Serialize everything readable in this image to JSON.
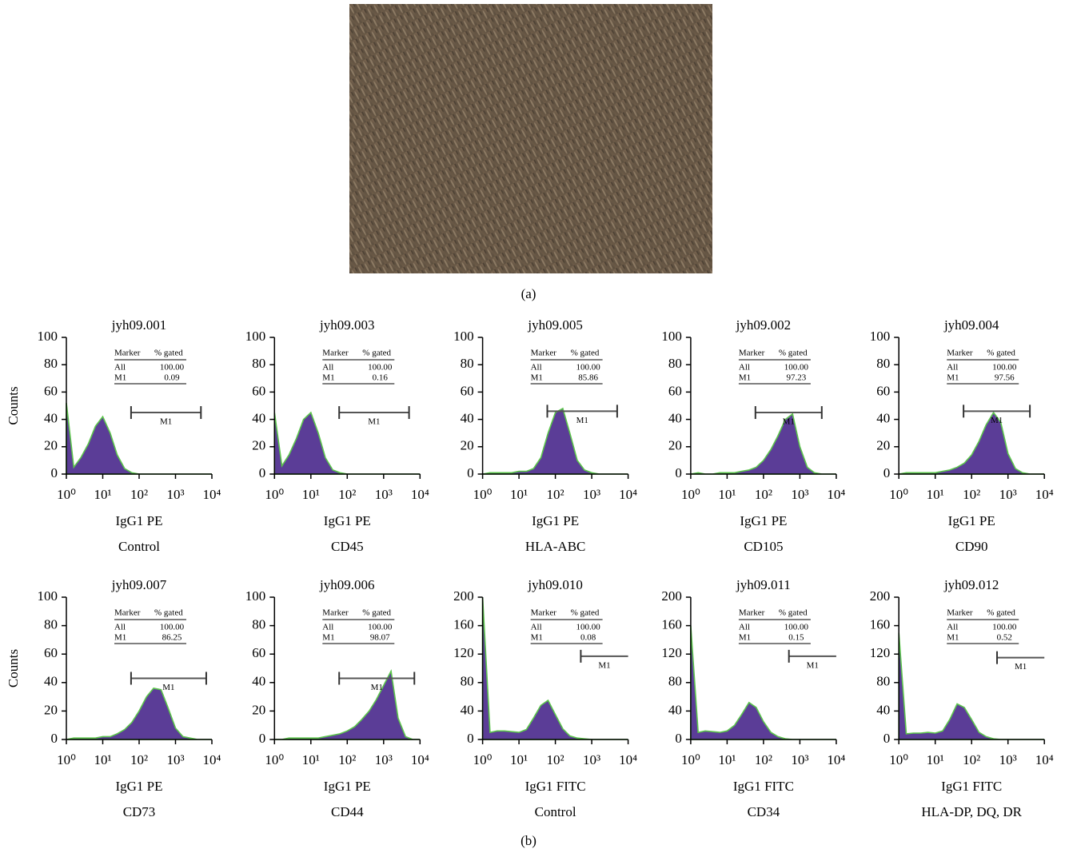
{
  "figure": {
    "panel_a_label": "(a)",
    "panel_b_label": "(b)"
  },
  "chart_data": [
    {
      "type": "histogram",
      "title": "jyh09.001",
      "ylabel": "Counts",
      "xlabel": "IgG1 PE",
      "caption": "Control",
      "log_x": true,
      "xlim": [
        1,
        10000
      ],
      "xticks": [
        {
          "value": 1,
          "label": "10⁰"
        },
        {
          "value": 10,
          "label": "10¹"
        },
        {
          "value": 100,
          "label": "10²"
        },
        {
          "value": 1000,
          "label": "10³"
        },
        {
          "value": 10000,
          "label": "10⁴"
        }
      ],
      "ylim": [
        0,
        100
      ],
      "yticks": [
        0,
        20,
        40,
        60,
        80,
        100
      ],
      "fill": "#5b3d97",
      "edge": "#5cc44c",
      "x": [
        1,
        1.6,
        2.5,
        4,
        6.3,
        10,
        16,
        25,
        40,
        63,
        100,
        160,
        250,
        400,
        630,
        1000,
        1600,
        2500,
        4000,
        6300,
        10000
      ],
      "values": [
        52,
        5,
        12,
        22,
        35,
        42,
        30,
        14,
        4,
        1,
        0,
        0,
        0,
        0,
        0,
        0,
        0,
        0,
        0,
        0,
        0
      ],
      "gate": {
        "label": "M1",
        "range": [
          60,
          5000
        ],
        "level": 45
      },
      "table": {
        "header": [
          "Marker",
          "% gated"
        ],
        "rows": [
          [
            "All",
            "100.00"
          ],
          [
            "M1",
            "0.09"
          ]
        ]
      }
    },
    {
      "type": "histogram",
      "title": "jyh09.003",
      "xlabel": "IgG1 PE",
      "caption": "CD45",
      "log_x": true,
      "xlim": [
        1,
        10000
      ],
      "xticks": [
        {
          "value": 1,
          "label": "10⁰"
        },
        {
          "value": 10,
          "label": "10¹"
        },
        {
          "value": 100,
          "label": "10²"
        },
        {
          "value": 1000,
          "label": "10³"
        },
        {
          "value": 10000,
          "label": "10⁴"
        }
      ],
      "ylim": [
        0,
        100
      ],
      "yticks": [
        0,
        20,
        40,
        60,
        80,
        100
      ],
      "fill": "#5b3d97",
      "edge": "#5cc44c",
      "x": [
        1,
        1.6,
        2.5,
        4,
        6.3,
        10,
        16,
        25,
        40,
        63,
        100,
        160,
        250,
        400,
        630,
        1000,
        1600,
        2500,
        4000,
        6300,
        10000
      ],
      "values": [
        45,
        6,
        14,
        26,
        40,
        45,
        30,
        12,
        3,
        1,
        0,
        0,
        0,
        0,
        0,
        0,
        0,
        0,
        0,
        0,
        0
      ],
      "gate": {
        "label": "M1",
        "range": [
          60,
          5000
        ],
        "level": 45
      },
      "table": {
        "header": [
          "Marker",
          "% gated"
        ],
        "rows": [
          [
            "All",
            "100.00"
          ],
          [
            "M1",
            "0.16"
          ]
        ]
      }
    },
    {
      "type": "histogram",
      "title": "jyh09.005",
      "xlabel": "IgG1 PE",
      "caption": "HLA-ABC",
      "log_x": true,
      "xlim": [
        1,
        10000
      ],
      "xticks": [
        {
          "value": 1,
          "label": "10⁰"
        },
        {
          "value": 10,
          "label": "10¹"
        },
        {
          "value": 100,
          "label": "10²"
        },
        {
          "value": 1000,
          "label": "10³"
        },
        {
          "value": 10000,
          "label": "10⁴"
        }
      ],
      "ylim": [
        0,
        100
      ],
      "yticks": [
        0,
        20,
        40,
        60,
        80,
        100
      ],
      "fill": "#5b3d97",
      "edge": "#5cc44c",
      "x": [
        1,
        1.6,
        2.5,
        4,
        6.3,
        10,
        16,
        25,
        40,
        63,
        100,
        160,
        250,
        400,
        630,
        1000,
        1600,
        2500,
        4000,
        6300,
        10000
      ],
      "values": [
        0,
        1,
        1,
        1,
        1,
        2,
        2,
        4,
        12,
        30,
        45,
        48,
        30,
        10,
        3,
        1,
        0,
        0,
        0,
        0,
        0
      ],
      "gate": {
        "label": "M1",
        "range": [
          60,
          5000
        ],
        "level": 46
      },
      "table": {
        "header": [
          "Marker",
          "% gated"
        ],
        "rows": [
          [
            "All",
            "100.00"
          ],
          [
            "M1",
            "85.86"
          ]
        ]
      }
    },
    {
      "type": "histogram",
      "title": "jyh09.002",
      "xlabel": "IgG1 PE",
      "caption": "CD105",
      "log_x": true,
      "xlim": [
        1,
        10000
      ],
      "xticks": [
        {
          "value": 1,
          "label": "10⁰"
        },
        {
          "value": 10,
          "label": "10¹"
        },
        {
          "value": 100,
          "label": "10²"
        },
        {
          "value": 1000,
          "label": "10³"
        },
        {
          "value": 10000,
          "label": "10⁴"
        }
      ],
      "ylim": [
        0,
        100
      ],
      "yticks": [
        0,
        20,
        40,
        60,
        80,
        100
      ],
      "fill": "#5b3d97",
      "edge": "#5cc44c",
      "x": [
        1,
        1.6,
        2.5,
        4,
        6.3,
        10,
        16,
        25,
        40,
        63,
        100,
        160,
        250,
        400,
        630,
        1000,
        1600,
        2500,
        4000,
        6300,
        10000
      ],
      "values": [
        0,
        1,
        0,
        0,
        1,
        1,
        1,
        2,
        3,
        5,
        10,
        18,
        28,
        40,
        44,
        20,
        5,
        1,
        0,
        0,
        0
      ],
      "gate": {
        "label": "M1",
        "range": [
          60,
          4000
        ],
        "level": 45
      },
      "table": {
        "header": [
          "Marker",
          "% gated"
        ],
        "rows": [
          [
            "All",
            "100.00"
          ],
          [
            "M1",
            "97.23"
          ]
        ]
      }
    },
    {
      "type": "histogram",
      "title": "jyh09.004",
      "xlabel": "IgG1 PE",
      "caption": "CD90",
      "log_x": true,
      "xlim": [
        1,
        10000
      ],
      "xticks": [
        {
          "value": 1,
          "label": "10⁰"
        },
        {
          "value": 10,
          "label": "10¹"
        },
        {
          "value": 100,
          "label": "10²"
        },
        {
          "value": 1000,
          "label": "10³"
        },
        {
          "value": 10000,
          "label": "10⁴"
        }
      ],
      "ylim": [
        0,
        100
      ],
      "yticks": [
        0,
        20,
        40,
        60,
        80,
        100
      ],
      "fill": "#5b3d97",
      "edge": "#5cc44c",
      "x": [
        1,
        1.6,
        2.5,
        4,
        6.3,
        10,
        16,
        25,
        40,
        63,
        100,
        160,
        250,
        400,
        630,
        1000,
        1600,
        2500,
        4000,
        6300,
        10000
      ],
      "values": [
        0,
        1,
        1,
        1,
        1,
        1,
        2,
        3,
        5,
        8,
        14,
        24,
        36,
        45,
        38,
        15,
        4,
        1,
        0,
        0,
        0
      ],
      "gate": {
        "label": "M1",
        "range": [
          60,
          4000
        ],
        "level": 46
      },
      "table": {
        "header": [
          "Marker",
          "% gated"
        ],
        "rows": [
          [
            "All",
            "100.00"
          ],
          [
            "M1",
            "97.56"
          ]
        ]
      }
    },
    {
      "type": "histogram",
      "title": "jyh09.007",
      "ylabel": "Counts",
      "xlabel": "IgG1 PE",
      "caption": "CD73",
      "log_x": true,
      "xlim": [
        1,
        10000
      ],
      "xticks": [
        {
          "value": 1,
          "label": "10⁰"
        },
        {
          "value": 10,
          "label": "10¹"
        },
        {
          "value": 100,
          "label": "10²"
        },
        {
          "value": 1000,
          "label": "10³"
        },
        {
          "value": 10000,
          "label": "10⁴"
        }
      ],
      "ylim": [
        0,
        100
      ],
      "yticks": [
        0,
        20,
        40,
        60,
        80,
        100
      ],
      "fill": "#5b3d97",
      "edge": "#5cc44c",
      "x": [
        1,
        1.6,
        2.5,
        4,
        6.3,
        10,
        16,
        25,
        40,
        63,
        100,
        160,
        250,
        400,
        630,
        1000,
        1600,
        2500,
        4000,
        6300,
        10000
      ],
      "values": [
        0,
        1,
        1,
        1,
        1,
        2,
        2,
        4,
        7,
        12,
        20,
        30,
        36,
        35,
        22,
        8,
        2,
        1,
        0,
        0,
        0
      ],
      "gate": {
        "label": "M1",
        "range": [
          60,
          7000
        ],
        "level": 43
      },
      "table": {
        "header": [
          "Marker",
          "% gated"
        ],
        "rows": [
          [
            "All",
            "100.00"
          ],
          [
            "M1",
            "86.25"
          ]
        ]
      }
    },
    {
      "type": "histogram",
      "title": "jyh09.006",
      "xlabel": "IgG1 PE",
      "caption": "CD44",
      "log_x": true,
      "xlim": [
        1,
        10000
      ],
      "xticks": [
        {
          "value": 1,
          "label": "10⁰"
        },
        {
          "value": 10,
          "label": "10¹"
        },
        {
          "value": 100,
          "label": "10²"
        },
        {
          "value": 1000,
          "label": "10³"
        },
        {
          "value": 10000,
          "label": "10⁴"
        }
      ],
      "ylim": [
        0,
        100
      ],
      "yticks": [
        0,
        20,
        40,
        60,
        80,
        100
      ],
      "fill": "#5b3d97",
      "edge": "#5cc44c",
      "x": [
        1,
        1.6,
        2.5,
        4,
        6.3,
        10,
        16,
        25,
        40,
        63,
        100,
        160,
        250,
        400,
        630,
        1000,
        1600,
        2500,
        4000,
        6300,
        10000
      ],
      "values": [
        0,
        0,
        1,
        1,
        1,
        1,
        1,
        2,
        3,
        4,
        6,
        9,
        14,
        20,
        28,
        38,
        48,
        15,
        2,
        0,
        0
      ],
      "gate": {
        "label": "M1",
        "range": [
          60,
          7000
        ],
        "level": 43
      },
      "table": {
        "header": [
          "Marker",
          "% gated"
        ],
        "rows": [
          [
            "All",
            "100.00"
          ],
          [
            "M1",
            "98.07"
          ]
        ]
      }
    },
    {
      "type": "histogram",
      "title": "jyh09.010",
      "xlabel": "IgG1 FITC",
      "caption": "Control",
      "log_x": true,
      "xlim": [
        1,
        10000
      ],
      "xticks": [
        {
          "value": 1,
          "label": "10⁰"
        },
        {
          "value": 10,
          "label": "10¹"
        },
        {
          "value": 100,
          "label": "10²"
        },
        {
          "value": 1000,
          "label": "10³"
        },
        {
          "value": 10000,
          "label": "10⁴"
        }
      ],
      "ylim": [
        0,
        200
      ],
      "yticks": [
        0,
        40,
        80,
        120,
        160,
        200
      ],
      "fill": "#5b3d97",
      "edge": "#5cc44c",
      "x": [
        1,
        1.6,
        2.5,
        4,
        6.3,
        10,
        16,
        25,
        40,
        63,
        100,
        160,
        250,
        400,
        630,
        1000,
        1600,
        2500,
        4000,
        6300,
        10000
      ],
      "values": [
        200,
        10,
        12,
        12,
        11,
        10,
        14,
        30,
        48,
        55,
        35,
        15,
        5,
        2,
        1,
        0,
        0,
        0,
        0,
        0,
        0
      ],
      "gate": {
        "label": "M1",
        "range": [
          500,
          10000
        ],
        "level": 117
      },
      "table": {
        "header": [
          "Marker",
          "% gated"
        ],
        "rows": [
          [
            "All",
            "100.00"
          ],
          [
            "M1",
            "0.08"
          ]
        ]
      }
    },
    {
      "type": "histogram",
      "title": "jyh09.011",
      "xlabel": "IgG1 FITC",
      "caption": "CD34",
      "log_x": true,
      "xlim": [
        1,
        10000
      ],
      "xticks": [
        {
          "value": 1,
          "label": "10⁰"
        },
        {
          "value": 10,
          "label": "10¹"
        },
        {
          "value": 100,
          "label": "10²"
        },
        {
          "value": 1000,
          "label": "10³"
        },
        {
          "value": 10000,
          "label": "10⁴"
        }
      ],
      "ylim": [
        0,
        200
      ],
      "yticks": [
        0,
        40,
        80,
        120,
        160,
        200
      ],
      "fill": "#5b3d97",
      "edge": "#5cc44c",
      "x": [
        1,
        1.6,
        2.5,
        4,
        6.3,
        10,
        16,
        25,
        40,
        63,
        100,
        160,
        250,
        400,
        630,
        1000,
        1600,
        2500,
        4000,
        6300,
        10000
      ],
      "values": [
        160,
        10,
        12,
        11,
        10,
        12,
        20,
        35,
        52,
        45,
        25,
        10,
        4,
        1,
        0,
        0,
        0,
        0,
        0,
        0,
        0
      ],
      "gate": {
        "label": "M1",
        "range": [
          500,
          10000
        ],
        "level": 117
      },
      "table": {
        "header": [
          "Marker",
          "% gated"
        ],
        "rows": [
          [
            "All",
            "100.00"
          ],
          [
            "M1",
            "0.15"
          ]
        ]
      }
    },
    {
      "type": "histogram",
      "title": "jyh09.012",
      "xlabel": "IgG1 FITC",
      "caption": "HLA-DP, DQ, DR",
      "log_x": true,
      "xlim": [
        1,
        10000
      ],
      "xticks": [
        {
          "value": 1,
          "label": "10⁰"
        },
        {
          "value": 10,
          "label": "10¹"
        },
        {
          "value": 100,
          "label": "10²"
        },
        {
          "value": 1000,
          "label": "10³"
        },
        {
          "value": 10000,
          "label": "10⁴"
        }
      ],
      "ylim": [
        0,
        200
      ],
      "yticks": [
        0,
        40,
        80,
        120,
        160,
        200
      ],
      "fill": "#5b3d97",
      "edge": "#5cc44c",
      "x": [
        1,
        1.6,
        2.5,
        4,
        6.3,
        10,
        16,
        25,
        40,
        63,
        100,
        160,
        250,
        400,
        630,
        1000,
        1600,
        2500,
        4000,
        6300,
        10000
      ],
      "values": [
        150,
        8,
        9,
        9,
        10,
        9,
        12,
        28,
        50,
        45,
        28,
        10,
        4,
        1,
        0,
        0,
        0,
        0,
        0,
        0,
        0
      ],
      "gate": {
        "label": "M1",
        "range": [
          500,
          10000
        ],
        "level": 115
      },
      "table": {
        "header": [
          "Marker",
          "% gated"
        ],
        "rows": [
          [
            "All",
            "100.00"
          ],
          [
            "M1",
            "0.52"
          ]
        ]
      }
    }
  ]
}
